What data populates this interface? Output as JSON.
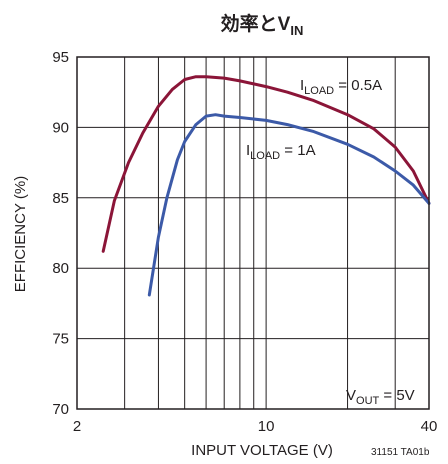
{
  "chart_data": {
    "type": "line",
    "title": {
      "main": "効率と",
      "var": "V",
      "sub": "IN"
    },
    "xlabel": "INPUT VOLTAGE (V)",
    "ylabel": "EFFICIENCY (%)",
    "x_scale": "log",
    "xlim": [
      2,
      40
    ],
    "ylim": [
      70,
      95
    ],
    "x_ticks": [
      2,
      10,
      40
    ],
    "y_ticks": [
      70,
      75,
      80,
      85,
      90,
      95
    ],
    "grid": true,
    "series": [
      {
        "name": "ILOAD = 0.5A",
        "label": {
          "main": "I",
          "sub": "LOAD",
          "rest": " = 0.5A"
        },
        "color": "#8b1538",
        "x": [
          2.5,
          2.75,
          3.1,
          3.5,
          4.0,
          4.5,
          5.0,
          5.5,
          6.0,
          7.0,
          8.0,
          10.0,
          12.0,
          15.0,
          20.0,
          25.0,
          30.0,
          35.0,
          40.0
        ],
        "y": [
          81.2,
          84.8,
          87.5,
          89.6,
          91.5,
          92.7,
          93.4,
          93.6,
          93.6,
          93.5,
          93.3,
          92.9,
          92.5,
          91.9,
          90.9,
          89.9,
          88.6,
          86.9,
          84.6
        ]
      },
      {
        "name": "ILOAD = 1A",
        "label": {
          "main": "I",
          "sub": "LOAD",
          "rest": " = 1A"
        },
        "color": "#3c5aa8",
        "x": [
          3.7,
          4.0,
          4.3,
          4.7,
          5.0,
          5.5,
          6.0,
          6.5,
          7.0,
          8.0,
          10.0,
          12.0,
          15.0,
          20.0,
          25.0,
          30.0,
          35.0,
          40.0
        ],
        "y": [
          78.1,
          82.2,
          85.0,
          87.7,
          89.0,
          90.2,
          90.8,
          90.9,
          90.8,
          90.7,
          90.5,
          90.2,
          89.7,
          88.8,
          87.9,
          86.9,
          85.9,
          84.6
        ]
      }
    ],
    "annotations": [
      {
        "main": "V",
        "sub": "OUT",
        "rest": " = 5V"
      }
    ],
    "footnote": "31151 TA01b"
  }
}
